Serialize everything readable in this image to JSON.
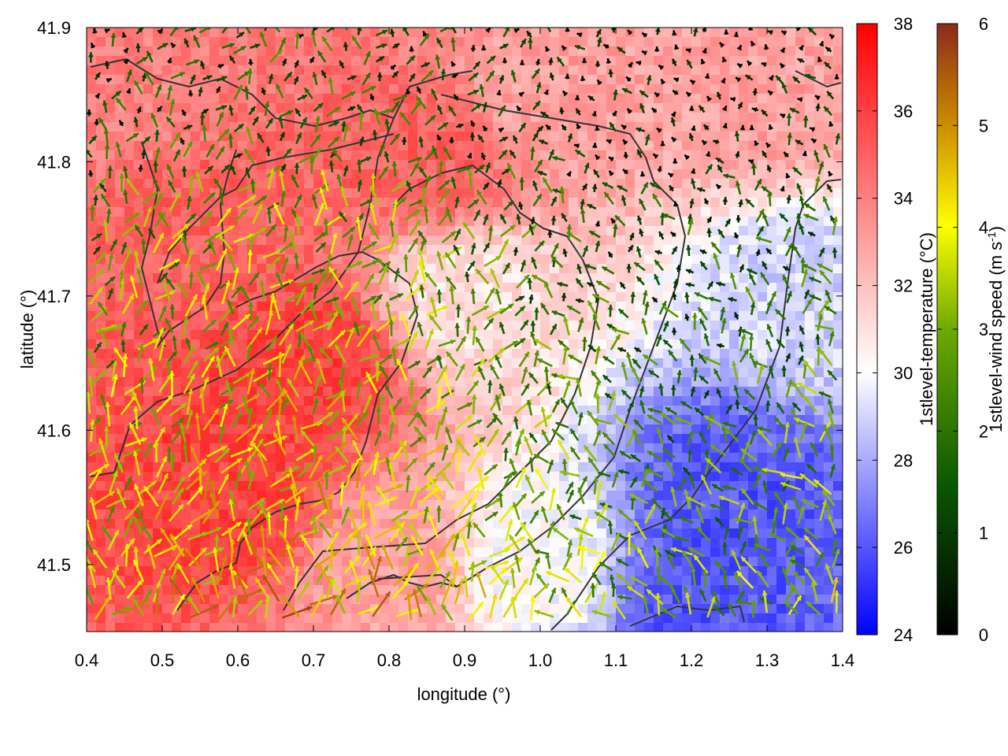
{
  "chart_data": {
    "type": "heatmap",
    "overlay": "vector-field",
    "xlabel": "longitude (°)",
    "ylabel": "latitude (°)",
    "xlim": [
      0.4,
      1.4
    ],
    "ylim": [
      41.45,
      41.9
    ],
    "xticks": [
      "0.4",
      "0.5",
      "0.6",
      "0.7",
      "0.8",
      "0.9",
      "1.0",
      "1.1",
      "1.2",
      "1.3",
      "1.4"
    ],
    "yticks": [
      "41.5",
      "41.6",
      "41.7",
      "41.8",
      "41.9"
    ],
    "temperature_colorbar": {
      "label": "1stlevel-temperature (°C)",
      "range": [
        24,
        38
      ],
      "ticks": [
        "24",
        "26",
        "28",
        "30",
        "32",
        "34",
        "36",
        "38"
      ],
      "colors": [
        "#0000ff",
        "#ffffff",
        "#ff0000"
      ]
    },
    "wind_colorbar": {
      "label_main": "1stlevel-wind speed (m s",
      "label_sup": "-1",
      "label_end": ")",
      "range": [
        0,
        6
      ],
      "ticks": [
        "0",
        "1",
        "2",
        "3",
        "4",
        "5",
        "6"
      ],
      "colors": [
        "#000000",
        "#0a5a00",
        "#6faa00",
        "#ffff00",
        "#cc8800",
        "#8a2a1a"
      ]
    },
    "temperature_field": {
      "description_points": [
        {
          "lon": 0.45,
          "lat": 41.85,
          "t": 34
        },
        {
          "lon": 0.55,
          "lat": 41.75,
          "t": 35
        },
        {
          "lon": 0.7,
          "lat": 41.65,
          "t": 36
        },
        {
          "lon": 0.6,
          "lat": 41.55,
          "t": 36
        },
        {
          "lon": 0.85,
          "lat": 41.8,
          "t": 35
        },
        {
          "lon": 0.9,
          "lat": 41.7,
          "t": 31
        },
        {
          "lon": 1.0,
          "lat": 41.85,
          "t": 33
        },
        {
          "lon": 1.3,
          "lat": 41.85,
          "t": 33
        },
        {
          "lon": 1.35,
          "lat": 41.7,
          "t": 29
        },
        {
          "lon": 1.25,
          "lat": 41.55,
          "t": 26
        },
        {
          "lon": 1.2,
          "lat": 41.48,
          "t": 26
        },
        {
          "lon": 1.0,
          "lat": 41.5,
          "t": 30
        },
        {
          "lon": 0.8,
          "lat": 41.5,
          "t": 33
        }
      ]
    }
  }
}
